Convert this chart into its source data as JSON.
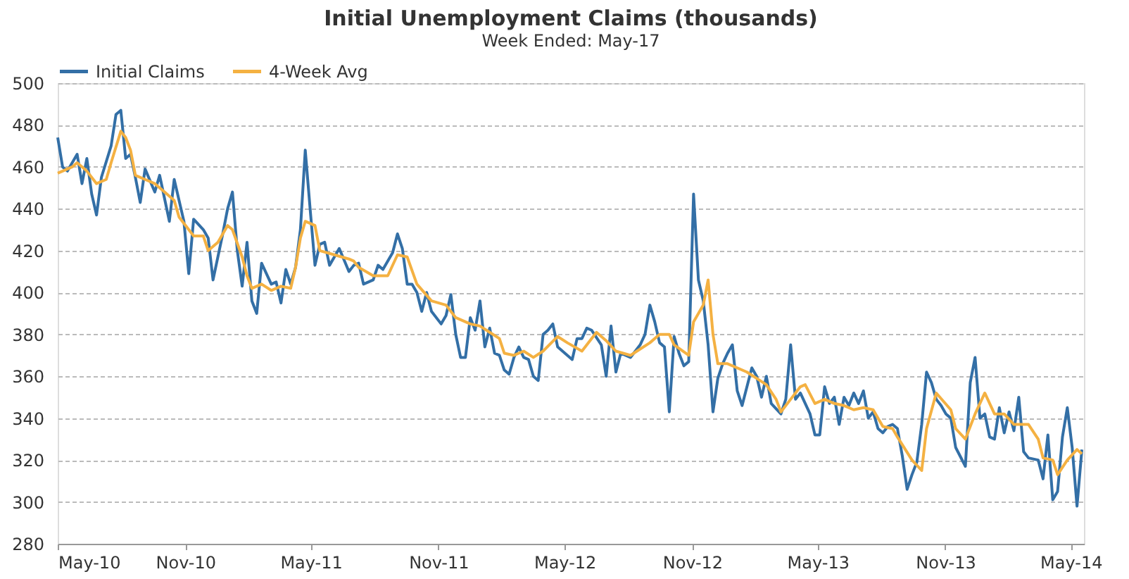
{
  "chart_data": {
    "type": "line",
    "title": "Initial Unemployment Claims (thousands)",
    "subtitle": "Week Ended: May-17",
    "xlim": [
      "2010-05-01",
      "2014-05-20"
    ],
    "xticks": [
      {
        "value": "2010-05-01",
        "label": "May-10"
      },
      {
        "value": "2010-11-01",
        "label": "Nov-10"
      },
      {
        "value": "2011-05-01",
        "label": "May-11"
      },
      {
        "value": "2011-11-01",
        "label": "Nov-11"
      },
      {
        "value": "2012-05-01",
        "label": "May-12"
      },
      {
        "value": "2012-11-01",
        "label": "Nov-12"
      },
      {
        "value": "2013-05-01",
        "label": "May-13"
      },
      {
        "value": "2013-11-01",
        "label": "Nov-13"
      },
      {
        "value": "2014-05-01",
        "label": "May-14"
      }
    ],
    "ylim": [
      280,
      500
    ],
    "yticks": [
      280,
      300,
      320,
      340,
      360,
      380,
      400,
      420,
      440,
      460,
      480,
      500
    ],
    "grid": "y",
    "legend": "top",
    "marker": "none",
    "line_style": "solid",
    "series": [
      {
        "name": "Initial Claims",
        "color": "#336fa6",
        "x": [
          "2010-05-01",
          "2010-05-08",
          "2010-05-15",
          "2010-05-29",
          "2010-06-05",
          "2010-06-12",
          "2010-06-19",
          "2010-06-26",
          "2010-07-03",
          "2010-07-17",
          "2010-07-24",
          "2010-07-31",
          "2010-08-07",
          "2010-08-14",
          "2010-08-21",
          "2010-08-28",
          "2010-09-04",
          "2010-09-18",
          "2010-09-25",
          "2010-10-02",
          "2010-10-09",
          "2010-10-16",
          "2010-10-30",
          "2010-11-06",
          "2010-11-13",
          "2010-11-27",
          "2010-12-04",
          "2010-12-11",
          "2010-12-25",
          "2011-01-01",
          "2011-01-08",
          "2011-01-15",
          "2011-01-22",
          "2011-01-29",
          "2011-02-05",
          "2011-02-12",
          "2011-02-19",
          "2011-03-05",
          "2011-03-12",
          "2011-03-19",
          "2011-03-26",
          "2011-04-02",
          "2011-04-09",
          "2011-04-16",
          "2011-04-23",
          "2011-04-30",
          "2011-05-07",
          "2011-05-14",
          "2011-05-21",
          "2011-05-28",
          "2011-06-04",
          "2011-06-11",
          "2011-06-25",
          "2011-07-02",
          "2011-07-09",
          "2011-07-16",
          "2011-07-30",
          "2011-08-06",
          "2011-08-13",
          "2011-08-27",
          "2011-09-03",
          "2011-09-10",
          "2011-09-17",
          "2011-09-24",
          "2011-10-01",
          "2011-10-08",
          "2011-10-15",
          "2011-10-22",
          "2011-11-05",
          "2011-11-12",
          "2011-11-19",
          "2011-11-26",
          "2011-12-03",
          "2011-12-10",
          "2011-12-17",
          "2011-12-24",
          "2011-12-31",
          "2012-01-07",
          "2012-01-14",
          "2012-01-21",
          "2012-01-28",
          "2012-02-04",
          "2012-02-11",
          "2012-02-18",
          "2012-02-25",
          "2012-03-03",
          "2012-03-10",
          "2012-03-17",
          "2012-03-24",
          "2012-03-31",
          "2012-04-07",
          "2012-04-14",
          "2012-04-21",
          "2012-05-05",
          "2012-05-12",
          "2012-05-19",
          "2012-05-26",
          "2012-06-02",
          "2012-06-09",
          "2012-06-23",
          "2012-06-30",
          "2012-07-07",
          "2012-07-14",
          "2012-07-21",
          "2012-07-28",
          "2012-08-04",
          "2012-08-18",
          "2012-08-25",
          "2012-09-01",
          "2012-09-08",
          "2012-09-15",
          "2012-09-22",
          "2012-09-29",
          "2012-10-06",
          "2012-10-13",
          "2012-10-20",
          "2012-10-27",
          "2012-11-03",
          "2012-11-10",
          "2012-11-17",
          "2012-11-24",
          "2012-12-01",
          "2012-12-08",
          "2012-12-15",
          "2012-12-22",
          "2012-12-29",
          "2013-01-05",
          "2013-01-12",
          "2013-01-26",
          "2013-02-02",
          "2013-02-09",
          "2013-02-16",
          "2013-02-23",
          "2013-03-09",
          "2013-03-16",
          "2013-03-23",
          "2013-03-30",
          "2013-04-06",
          "2013-04-20",
          "2013-04-27",
          "2013-05-04",
          "2013-05-11",
          "2013-05-18",
          "2013-05-25",
          "2013-06-01",
          "2013-06-08",
          "2013-06-15",
          "2013-06-22",
          "2013-06-29",
          "2013-07-06",
          "2013-07-13",
          "2013-07-20",
          "2013-07-27",
          "2013-08-03",
          "2013-08-10",
          "2013-08-17",
          "2013-08-24",
          "2013-08-31",
          "2013-09-07",
          "2013-09-14",
          "2013-09-21",
          "2013-09-28",
          "2013-10-05",
          "2013-10-12",
          "2013-10-19",
          "2013-10-26",
          "2013-11-02",
          "2013-11-09",
          "2013-11-16",
          "2013-11-30",
          "2013-12-07",
          "2013-12-14",
          "2013-12-21",
          "2013-12-28",
          "2014-01-04",
          "2014-01-11",
          "2014-01-18",
          "2014-01-25",
          "2014-02-01",
          "2014-02-08",
          "2014-02-15",
          "2014-02-22",
          "2014-03-01",
          "2014-03-15",
          "2014-03-22",
          "2014-03-29",
          "2014-04-05",
          "2014-04-12",
          "2014-04-19",
          "2014-04-26",
          "2014-05-03",
          "2014-05-10",
          "2014-05-17"
        ],
        "values": [
          474,
          460,
          458,
          466,
          452,
          464,
          447,
          437,
          455,
          470,
          485,
          487,
          464,
          466,
          455,
          443,
          459,
          448,
          456,
          445,
          434,
          454,
          434,
          409,
          435,
          430,
          426,
          406,
          428,
          440,
          448,
          420,
          403,
          424,
          396,
          390,
          414,
          404,
          405,
          395,
          411,
          404,
          412,
          430,
          468,
          440,
          413,
          423,
          424,
          413,
          417,
          421,
          410,
          413,
          414,
          404,
          406,
          413,
          411,
          419,
          428,
          421,
          404,
          404,
          400,
          391,
          400,
          391,
          385,
          389,
          399,
          380,
          369,
          369,
          388,
          382,
          396,
          374,
          383,
          371,
          370,
          363,
          361,
          369,
          374,
          369,
          368,
          360,
          358,
          380,
          382,
          385,
          374,
          370,
          368,
          378,
          378,
          383,
          382,
          375,
          360,
          384,
          362,
          371,
          370,
          369,
          375,
          380,
          394,
          386,
          376,
          374,
          343,
          379,
          371,
          365,
          367,
          447,
          406,
          396,
          375,
          343,
          359,
          366,
          371,
          375,
          353,
          346,
          364,
          360,
          350,
          360,
          347,
          342,
          349,
          375,
          349,
          352,
          342,
          332,
          332,
          355,
          347,
          350,
          337,
          350,
          346,
          352,
          347,
          353,
          340,
          343,
          335,
          333,
          336,
          337,
          335,
          322,
          306,
          313,
          319,
          337,
          362,
          357,
          349,
          346,
          342,
          340,
          326,
          317,
          357,
          369,
          340,
          342,
          331,
          330,
          345,
          333,
          343,
          334,
          350,
          324,
          321,
          320,
          311,
          332,
          301,
          305,
          331,
          345,
          326,
          298,
          325
        ]
      },
      {
        "name": "4-Week Avg",
        "color": "#f4b142",
        "x": [
          "2010-05-01",
          "2010-05-22",
          "2010-05-29",
          "2010-06-12",
          "2010-06-26",
          "2010-07-10",
          "2010-07-17",
          "2010-07-31",
          "2010-08-07",
          "2010-08-14",
          "2010-08-21",
          "2010-09-04",
          "2010-09-18",
          "2010-10-02",
          "2010-10-16",
          "2010-10-23",
          "2010-11-06",
          "2010-11-13",
          "2010-11-27",
          "2010-12-04",
          "2010-12-18",
          "2011-01-01",
          "2011-01-08",
          "2011-01-22",
          "2011-01-29",
          "2011-02-05",
          "2011-02-19",
          "2011-03-05",
          "2011-03-19",
          "2011-04-02",
          "2011-04-09",
          "2011-04-16",
          "2011-04-23",
          "2011-05-07",
          "2011-05-14",
          "2011-06-04",
          "2011-06-25",
          "2011-07-02",
          "2011-07-09",
          "2011-07-30",
          "2011-08-20",
          "2011-09-03",
          "2011-09-17",
          "2011-10-01",
          "2011-10-22",
          "2011-11-12",
          "2011-11-26",
          "2011-12-17",
          "2011-12-31",
          "2012-01-14",
          "2012-01-28",
          "2012-02-04",
          "2012-02-18",
          "2012-03-03",
          "2012-03-17",
          "2012-03-31",
          "2012-04-21",
          "2012-05-05",
          "2012-05-26",
          "2012-06-16",
          "2012-06-30",
          "2012-07-14",
          "2012-08-04",
          "2012-08-18",
          "2012-09-01",
          "2012-09-15",
          "2012-09-29",
          "2012-10-06",
          "2012-10-27",
          "2012-11-03",
          "2012-11-17",
          "2012-11-24",
          "2012-12-01",
          "2012-12-08",
          "2012-12-22",
          "2013-01-19",
          "2013-02-02",
          "2013-02-16",
          "2013-03-02",
          "2013-03-09",
          "2013-03-23",
          "2013-04-06",
          "2013-04-13",
          "2013-04-27",
          "2013-05-11",
          "2013-05-25",
          "2013-06-08",
          "2013-06-22",
          "2013-07-06",
          "2013-07-20",
          "2013-08-03",
          "2013-08-17",
          "2013-08-24",
          "2013-09-14",
          "2013-09-28",
          "2013-10-05",
          "2013-10-19",
          "2013-11-09",
          "2013-11-16",
          "2013-11-30",
          "2013-12-14",
          "2013-12-28",
          "2014-01-11",
          "2014-01-25",
          "2014-02-08",
          "2014-03-01",
          "2014-03-15",
          "2014-03-22",
          "2014-04-05",
          "2014-04-12",
          "2014-04-26",
          "2014-05-10",
          "2014-05-17"
        ],
        "values": [
          457,
          460,
          462,
          458,
          452,
          454,
          462,
          477,
          474,
          468,
          456,
          454,
          452,
          448,
          444,
          436,
          430,
          427,
          427,
          420,
          424,
          432,
          430,
          417,
          408,
          402,
          404,
          401,
          403,
          402,
          412,
          426,
          434,
          432,
          420,
          418,
          416,
          415,
          412,
          408,
          408,
          418,
          417,
          404,
          396,
          394,
          388,
          385,
          384,
          381,
          378,
          371,
          370,
          372,
          369,
          372,
          379,
          376,
          372,
          381,
          377,
          372,
          370,
          373,
          376,
          380,
          380,
          375,
          370,
          386,
          394,
          406,
          380,
          366,
          366,
          362,
          359,
          356,
          349,
          343,
          349,
          355,
          356,
          347,
          349,
          347,
          346,
          344,
          345,
          344,
          336,
          335,
          331,
          320,
          315,
          335,
          352,
          344,
          335,
          330,
          342,
          352,
          342,
          342,
          337,
          337,
          330,
          321,
          320,
          313,
          320,
          325,
          323
        ]
      }
    ]
  }
}
